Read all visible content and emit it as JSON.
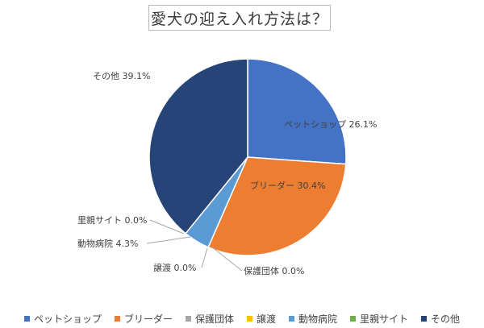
{
  "chart_data": {
    "type": "pie",
    "title": "愛犬の迎え入れ方法は？",
    "slices": [
      {
        "name": "ペットショップ",
        "value": 26.1,
        "label": "ペットショップ 26.1%",
        "color": "#4472c4"
      },
      {
        "name": "ブリーダー",
        "value": 30.4,
        "label": "ブリーダー 30.4%",
        "color": "#ed7d31"
      },
      {
        "name": "保護団体",
        "value": 0.0,
        "label": "保護団体 0.0%",
        "color": "#a5a5a5"
      },
      {
        "name": "譲渡",
        "value": 0.0,
        "label": "譲渡 0.0%",
        "color": "#ffc000"
      },
      {
        "name": "動物病院",
        "value": 4.3,
        "label": "動物病院 4.3%",
        "color": "#5b9bd5"
      },
      {
        "name": "里親サイト",
        "value": 0.0,
        "label": "里親サイト 0.0%",
        "color": "#70ad47"
      },
      {
        "name": "その他",
        "value": 39.1,
        "label": "その他 39.1%",
        "color": "#264478"
      }
    ],
    "legend": {
      "position": "bottom",
      "marker": "■"
    }
  }
}
